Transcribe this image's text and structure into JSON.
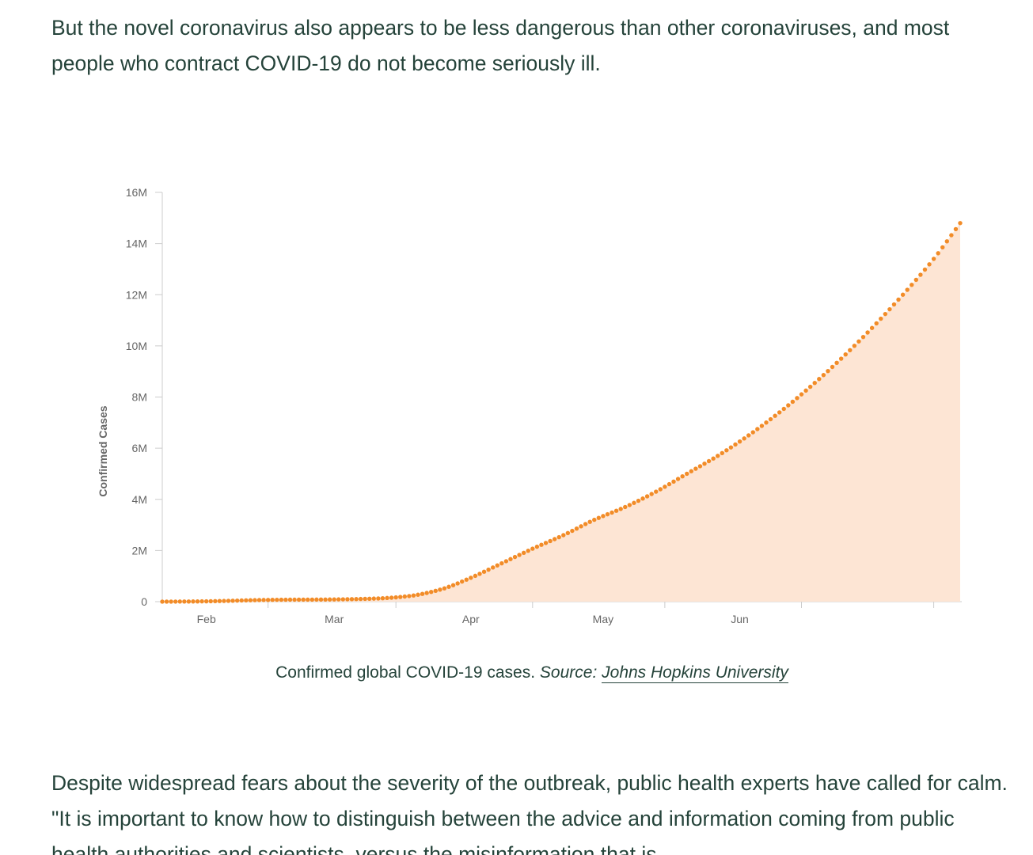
{
  "article": {
    "paragraph_1": "But the novel coronavirus also appears to be less dangerous than other coronaviruses, and most people who contract COVID-19 do not become seriously ill.",
    "paragraph_2": "Despite widespread fears about the severity of the outbreak, public health experts have called for calm. \"It is important to know how to distinguish between the advice and information coming from public health authorities and scientists, versus the misinformation that is"
  },
  "caption": {
    "text": "Confirmed global COVID-19 cases.",
    "source_label": "Source:",
    "source_link": "Johns Hopkins University"
  },
  "colors": {
    "line": "#f28c28",
    "fill": "#fde5d4",
    "axis": "#cccccc",
    "text": "#25433a"
  },
  "chart_data": {
    "type": "area",
    "ylabel": "Confirmed Cases",
    "xlabel": "",
    "y_ticks": [
      0,
      2000000,
      4000000,
      6000000,
      8000000,
      10000000,
      12000000,
      14000000,
      16000000
    ],
    "y_tick_labels": [
      "0",
      "2M",
      "4M",
      "6M",
      "8M",
      "10M",
      "12M",
      "14M",
      "16M"
    ],
    "ylim": [
      0,
      16000000
    ],
    "xlim": [
      "2020-01-22",
      "2020-07-21"
    ],
    "x_tick_labels": [
      {
        "date": "2020-02-01",
        "label": "Feb"
      },
      {
        "date": "2020-03-01",
        "label": "Mar"
      },
      {
        "date": "2020-04-01",
        "label": "Apr"
      },
      {
        "date": "2020-05-01",
        "label": "May"
      },
      {
        "date": "2020-06-01",
        "label": "Jun"
      }
    ],
    "x_tick_marks": [
      "2020-02-15",
      "2020-03-15",
      "2020-04-15",
      "2020-05-15",
      "2020-06-15",
      "2020-07-15"
    ],
    "grid": false,
    "series": [
      {
        "x": [
          "2020-01-22",
          "2020-01-29",
          "2020-02-05",
          "2020-02-12",
          "2020-02-19",
          "2020-02-26",
          "2020-03-04",
          "2020-03-11",
          "2020-03-18",
          "2020-03-25",
          "2020-04-01",
          "2020-04-08",
          "2020-04-15",
          "2020-04-22",
          "2020-04-29",
          "2020-05-06",
          "2020-05-13",
          "2020-05-20",
          "2020-05-27",
          "2020-06-03",
          "2020-06-10",
          "2020-06-17",
          "2020-06-24",
          "2020-07-01",
          "2020-07-08",
          "2020-07-15",
          "2020-07-21"
        ],
        "values": [
          555,
          7800,
          28000,
          60000,
          76000,
          81000,
          95000,
          126000,
          220000,
          470000,
          935000,
          1500000,
          2070000,
          2600000,
          3200000,
          3700000,
          4300000,
          5000000,
          5700000,
          6500000,
          7400000,
          8400000,
          9500000,
          10700000,
          12000000,
          13400000,
          14800000
        ]
      }
    ]
  }
}
